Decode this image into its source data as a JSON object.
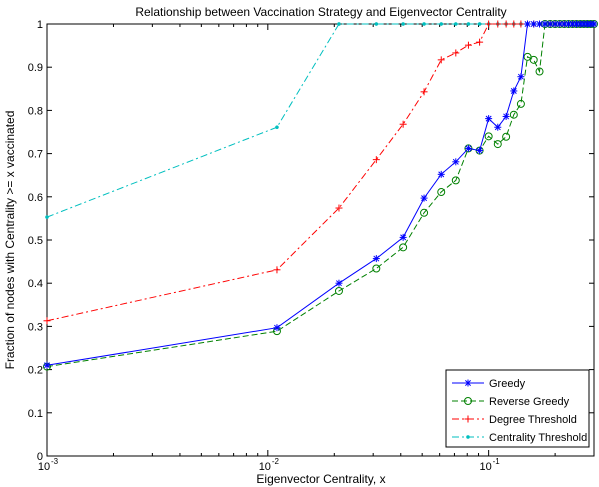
{
  "chart_data": {
    "type": "line",
    "title": "Relationship between Vaccination Strategy and Eigenvector Centrality",
    "xlabel": "Eigenvector Centrality, x",
    "ylabel": "Fraction of nodes with Centrality >= x vaccinated",
    "xscale": "log",
    "xlim": [
      0.001,
      0.3
    ],
    "ylim": [
      0,
      1
    ],
    "x_tick_labels": [
      "10",
      "10",
      "10"
    ],
    "x_tick_exponents": [
      "-3",
      "-2",
      "-1"
    ],
    "x_ticks": [
      0.001,
      0.01,
      0.1
    ],
    "y_ticks": [
      0,
      0.1,
      0.2,
      0.3,
      0.4,
      0.5,
      0.6,
      0.7,
      0.8,
      0.9,
      1
    ],
    "y_tick_labels": [
      "0",
      "0.1",
      "0.2",
      "0.3",
      "0.4",
      "0.5",
      "0.6",
      "0.7",
      "0.8",
      "0.9",
      "1"
    ],
    "grid": false,
    "legend_position": "bottom-right",
    "series": [
      {
        "name": "Greedy",
        "color": "#0000ff",
        "dash": "solid",
        "marker": "asterisk",
        "x": [
          0.001,
          0.011,
          0.021,
          0.031,
          0.041,
          0.051,
          0.061,
          0.071,
          0.081,
          0.091,
          0.1,
          0.11,
          0.12,
          0.13,
          0.14,
          0.15,
          0.16,
          0.17,
          0.18,
          0.19,
          0.2,
          0.21,
          0.22,
          0.23,
          0.24,
          0.25,
          0.26,
          0.27,
          0.28,
          0.29,
          0.3
        ],
        "y": [
          0.21,
          0.297,
          0.4,
          0.457,
          0.506,
          0.597,
          0.652,
          0.681,
          0.712,
          0.707,
          0.781,
          0.761,
          0.786,
          0.845,
          0.878,
          1,
          1,
          1,
          1,
          1,
          1,
          1,
          1,
          1,
          1,
          1,
          1,
          1,
          1,
          1,
          1
        ]
      },
      {
        "name": "Reverse Greedy",
        "color": "#008000",
        "dash": "dashed",
        "marker": "circle",
        "x": [
          0.001,
          0.011,
          0.021,
          0.031,
          0.041,
          0.051,
          0.061,
          0.071,
          0.081,
          0.091,
          0.1,
          0.11,
          0.12,
          0.13,
          0.14,
          0.15,
          0.16,
          0.17,
          0.18,
          0.19,
          0.2,
          0.21,
          0.22,
          0.23,
          0.24,
          0.25,
          0.26,
          0.27,
          0.28,
          0.29,
          0.3
        ],
        "y": [
          0.207,
          0.289,
          0.382,
          0.434,
          0.483,
          0.563,
          0.611,
          0.638,
          0.712,
          0.707,
          0.74,
          0.722,
          0.739,
          0.79,
          0.815,
          0.924,
          0.917,
          0.89,
          1,
          1,
          1,
          1,
          1,
          1,
          1,
          1,
          1,
          1,
          1,
          1,
          1
        ]
      },
      {
        "name": "Degree Threshold",
        "color": "#ff0000",
        "dash": "dashdot",
        "marker": "plus",
        "x": [
          0.001,
          0.011,
          0.021,
          0.031,
          0.041,
          0.051,
          0.061,
          0.071,
          0.081,
          0.091,
          0.1,
          0.11,
          0.12,
          0.13,
          0.14,
          0.15,
          0.16,
          0.17,
          0.18,
          0.19,
          0.2,
          0.21,
          0.22,
          0.23,
          0.24,
          0.25,
          0.26,
          0.27,
          0.28,
          0.29,
          0.3
        ],
        "y": [
          0.313,
          0.431,
          0.574,
          0.686,
          0.768,
          0.843,
          0.917,
          0.933,
          0.951,
          0.958,
          1,
          1,
          1,
          1,
          1,
          1,
          1,
          1,
          1,
          1,
          1,
          1,
          1,
          1,
          1,
          1,
          1,
          1,
          1,
          1,
          1
        ]
      },
      {
        "name": "Centrality Threshold",
        "color": "#00bfbf",
        "dash": "dashdot",
        "marker": "dot",
        "x": [
          0.001,
          0.011,
          0.021,
          0.031,
          0.041,
          0.051,
          0.061,
          0.071,
          0.081,
          0.091,
          0.1,
          0.11,
          0.12,
          0.13,
          0.14,
          0.15,
          0.16,
          0.17,
          0.18,
          0.19,
          0.2,
          0.21,
          0.22,
          0.23,
          0.24,
          0.25,
          0.26,
          0.27,
          0.28,
          0.29,
          0.3
        ],
        "y": [
          0.553,
          0.761,
          1,
          1,
          1,
          1,
          1,
          1,
          1,
          1,
          1,
          1,
          1,
          1,
          1,
          1,
          1,
          1,
          1,
          1,
          1,
          1,
          1,
          1,
          1,
          1,
          1,
          1,
          1,
          1,
          1
        ]
      }
    ]
  }
}
